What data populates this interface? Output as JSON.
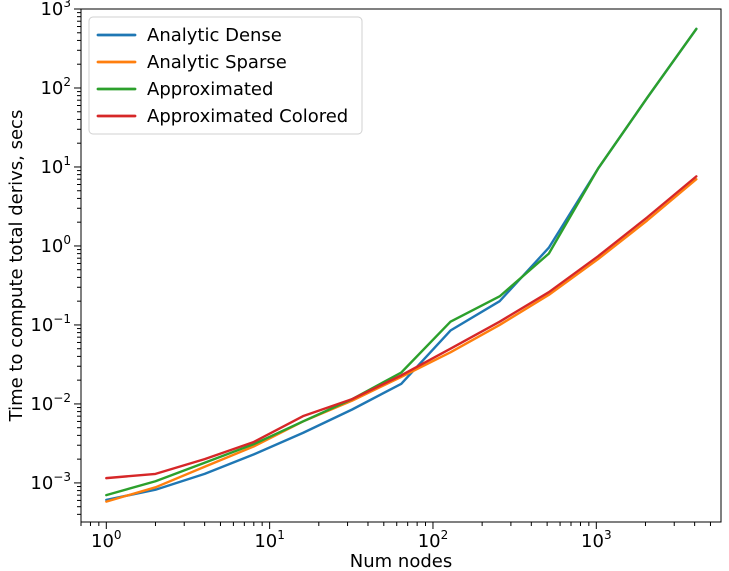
{
  "chart_data": {
    "type": "line",
    "title": "",
    "xlabel": "Num nodes",
    "ylabel": "Time to compute total derivs, secs",
    "x_scale": "log",
    "y_scale": "log",
    "xlim": [
      0.7,
      5800
    ],
    "ylim": [
      0.00032,
      1000
    ],
    "grid": false,
    "legend_position": "top-left",
    "x_ticks": [
      {
        "value": 1,
        "base": "10",
        "exp": "0"
      },
      {
        "value": 10,
        "base": "10",
        "exp": "1"
      },
      {
        "value": 100,
        "base": "10",
        "exp": "2"
      },
      {
        "value": 1000,
        "base": "10",
        "exp": "3"
      }
    ],
    "y_ticks": [
      {
        "value": 0.001,
        "base": "10",
        "exp": "−3"
      },
      {
        "value": 0.01,
        "base": "10",
        "exp": "−2"
      },
      {
        "value": 0.1,
        "base": "10",
        "exp": "−1"
      },
      {
        "value": 1,
        "base": "10",
        "exp": "0"
      },
      {
        "value": 10,
        "base": "10",
        "exp": "1"
      },
      {
        "value": 100,
        "base": "10",
        "exp": "2"
      },
      {
        "value": 1000,
        "base": "10",
        "exp": "3"
      }
    ],
    "x": [
      1,
      2,
      4,
      8,
      16,
      32,
      64,
      128,
      256,
      512,
      1024,
      2048,
      4096
    ],
    "series": [
      {
        "name": "Analytic Dense",
        "color": "#1f77b4",
        "values": [
          0.00061,
          0.00082,
          0.0013,
          0.0023,
          0.0043,
          0.0085,
          0.018,
          0.085,
          0.2,
          0.95,
          9.5,
          75,
          560
        ]
      },
      {
        "name": "Analytic Sparse",
        "color": "#ff7f0e",
        "values": [
          0.00058,
          0.00088,
          0.0016,
          0.0029,
          0.006,
          0.011,
          0.022,
          0.045,
          0.1,
          0.24,
          0.68,
          2.1,
          7.0
        ]
      },
      {
        "name": "Approximated",
        "color": "#2ca02c",
        "values": [
          0.0007,
          0.00105,
          0.0018,
          0.0031,
          0.006,
          0.0115,
          0.025,
          0.11,
          0.23,
          0.8,
          9.5,
          75,
          560
        ]
      },
      {
        "name": "Approximated Colored",
        "color": "#d62728",
        "values": [
          0.00115,
          0.0013,
          0.002,
          0.0033,
          0.007,
          0.0115,
          0.023,
          0.05,
          0.11,
          0.26,
          0.74,
          2.3,
          7.6
        ]
      }
    ]
  }
}
